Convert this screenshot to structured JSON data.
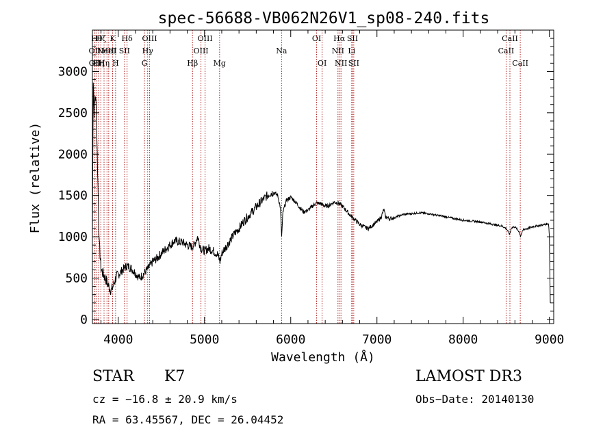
{
  "chart_data": {
    "type": "line",
    "title": "spec-56688-VB062N26V1_sp08-240.fits",
    "xlabel": "Wavelength (Å)",
    "ylabel": "Flux (relative)",
    "xlim": [
      3700,
      9050
    ],
    "ylim": [
      -50,
      3500
    ],
    "xticks": [
      4000,
      5000,
      6000,
      7000,
      8000,
      9000
    ],
    "yticks": [
      0,
      500,
      1000,
      1500,
      2000,
      2500,
      3000
    ],
    "x_minor_step": 200,
    "y_minor_step": 100,
    "series": [
      {
        "name": "flux",
        "points": [
          [
            3700,
            1000
          ],
          [
            3710,
            2900
          ],
          [
            3720,
            2500
          ],
          [
            3730,
            2700
          ],
          [
            3745,
            2600
          ],
          [
            3760,
            1800
          ],
          [
            3780,
            900
          ],
          [
            3800,
            620
          ],
          [
            3820,
            560
          ],
          [
            3850,
            500
          ],
          [
            3880,
            420
          ],
          [
            3900,
            380
          ],
          [
            3920,
            350
          ],
          [
            3940,
            400
          ],
          [
            3970,
            500
          ],
          [
            4000,
            540
          ],
          [
            4050,
            600
          ],
          [
            4100,
            650
          ],
          [
            4150,
            620
          ],
          [
            4200,
            560
          ],
          [
            4250,
            500
          ],
          [
            4300,
            560
          ],
          [
            4350,
            620
          ],
          [
            4400,
            700
          ],
          [
            4450,
            740
          ],
          [
            4500,
            800
          ],
          [
            4550,
            850
          ],
          [
            4600,
            900
          ],
          [
            4650,
            950
          ],
          [
            4700,
            940
          ],
          [
            4750,
            930
          ],
          [
            4800,
            900
          ],
          [
            4850,
            880
          ],
          [
            4880,
            900
          ],
          [
            4920,
            1000
          ],
          [
            4960,
            860
          ],
          [
            5000,
            830
          ],
          [
            5050,
            860
          ],
          [
            5100,
            830
          ],
          [
            5150,
            790
          ],
          [
            5180,
            700
          ],
          [
            5200,
            800
          ],
          [
            5250,
            880
          ],
          [
            5300,
            960
          ],
          [
            5350,
            1040
          ],
          [
            5400,
            1100
          ],
          [
            5450,
            1180
          ],
          [
            5500,
            1240
          ],
          [
            5550,
            1300
          ],
          [
            5600,
            1360
          ],
          [
            5650,
            1420
          ],
          [
            5700,
            1470
          ],
          [
            5750,
            1520
          ],
          [
            5800,
            1540
          ],
          [
            5850,
            1500
          ],
          [
            5880,
            1350
          ],
          [
            5895,
            1000
          ],
          [
            5910,
            1300
          ],
          [
            5950,
            1440
          ],
          [
            6000,
            1480
          ],
          [
            6050,
            1430
          ],
          [
            6100,
            1360
          ],
          [
            6150,
            1300
          ],
          [
            6200,
            1320
          ],
          [
            6250,
            1370
          ],
          [
            6300,
            1410
          ],
          [
            6350,
            1400
          ],
          [
            6400,
            1370
          ],
          [
            6450,
            1380
          ],
          [
            6500,
            1420
          ],
          [
            6550,
            1410
          ],
          [
            6600,
            1370
          ],
          [
            6650,
            1310
          ],
          [
            6700,
            1250
          ],
          [
            6750,
            1200
          ],
          [
            6800,
            1150
          ],
          [
            6850,
            1120
          ],
          [
            6900,
            1100
          ],
          [
            6950,
            1140
          ],
          [
            7000,
            1180
          ],
          [
            7050,
            1240
          ],
          [
            7080,
            1330
          ],
          [
            7100,
            1240
          ],
          [
            7150,
            1220
          ],
          [
            7200,
            1230
          ],
          [
            7250,
            1250
          ],
          [
            7300,
            1270
          ],
          [
            7400,
            1280
          ],
          [
            7500,
            1290
          ],
          [
            7600,
            1280
          ],
          [
            7700,
            1260
          ],
          [
            7800,
            1240
          ],
          [
            7900,
            1220
          ],
          [
            8000,
            1200
          ],
          [
            8100,
            1190
          ],
          [
            8200,
            1180
          ],
          [
            8300,
            1160
          ],
          [
            8400,
            1140
          ],
          [
            8450,
            1130
          ],
          [
            8500,
            1100
          ],
          [
            8540,
            1030
          ],
          [
            8560,
            1110
          ],
          [
            8600,
            1120
          ],
          [
            8650,
            1060
          ],
          [
            8665,
            1010
          ],
          [
            8700,
            1090
          ],
          [
            8750,
            1100
          ],
          [
            8800,
            1120
          ],
          [
            8850,
            1130
          ],
          [
            8900,
            1140
          ],
          [
            8950,
            1150
          ],
          [
            8990,
            1160
          ],
          [
            9000,
            1000
          ],
          [
            9010,
            200
          ]
        ]
      }
    ],
    "lines": [
      {
        "wl": 3727,
        "label": "OII",
        "row": 2
      },
      {
        "wl": 3729,
        "label": "OII",
        "row": 3
      },
      {
        "wl": 3750,
        "label": "Hθ",
        "row": 1
      },
      {
        "wl": 3771,
        "label": "Hη",
        "row": 3
      },
      {
        "wl": 3798,
        "label": "Hζ",
        "row": 1
      },
      {
        "wl": 3835,
        "label": "Hη",
        "row": 3
      },
      {
        "wl": 3869,
        "label": "NeIII",
        "row": 2
      },
      {
        "wl": 3889,
        "label": "HeI",
        "row": 2
      },
      {
        "wl": 3934,
        "label": "K",
        "row": 1
      },
      {
        "wl": 3969,
        "label": "H",
        "row": 3
      },
      {
        "wl": 4072,
        "label": "SII",
        "row": 2
      },
      {
        "wl": 4102,
        "label": "Hδ",
        "row": 1
      },
      {
        "wl": 4304,
        "label": "G",
        "row": 3
      },
      {
        "wl": 4341,
        "label": "Hγ",
        "row": 2
      },
      {
        "wl": 4363,
        "label": "OIII",
        "row": 1
      },
      {
        "wl": 4861,
        "label": "Hβ",
        "row": 3
      },
      {
        "wl": 4959,
        "label": "OIII",
        "row": 2
      },
      {
        "wl": 5007,
        "label": "OIII",
        "row": 1
      },
      {
        "wl": 5175,
        "label": "Mg",
        "row": 3
      },
      {
        "wl": 5894,
        "label": "Na",
        "row": 2
      },
      {
        "wl": 6300,
        "label": "OI",
        "row": 1
      },
      {
        "wl": 6364,
        "label": "OI",
        "row": 3
      },
      {
        "wl": 6548,
        "label": "NII",
        "row": 2
      },
      {
        "wl": 6563,
        "label": "Hα",
        "row": 1
      },
      {
        "wl": 6583,
        "label": "NII",
        "row": 3
      },
      {
        "wl": 6707,
        "label": "Li",
        "row": 2
      },
      {
        "wl": 6716,
        "label": "SII",
        "row": 1
      },
      {
        "wl": 6731,
        "label": "SII",
        "row": 3
      },
      {
        "wl": 8498,
        "label": "CaII",
        "row": 2
      },
      {
        "wl": 8542,
        "label": "CaII",
        "row": 1
      },
      {
        "wl": 8662,
        "label": "CaII",
        "row": 3
      }
    ]
  },
  "info": {
    "class": "STAR",
    "subclass": "K7",
    "cz": "cz = −16.8 ± 20.9 km/s",
    "radec": "RA =  63.45567, DEC =  26.04452",
    "survey": "LAMOST DR3",
    "obsdate": "Obs−Date: 20140130"
  }
}
